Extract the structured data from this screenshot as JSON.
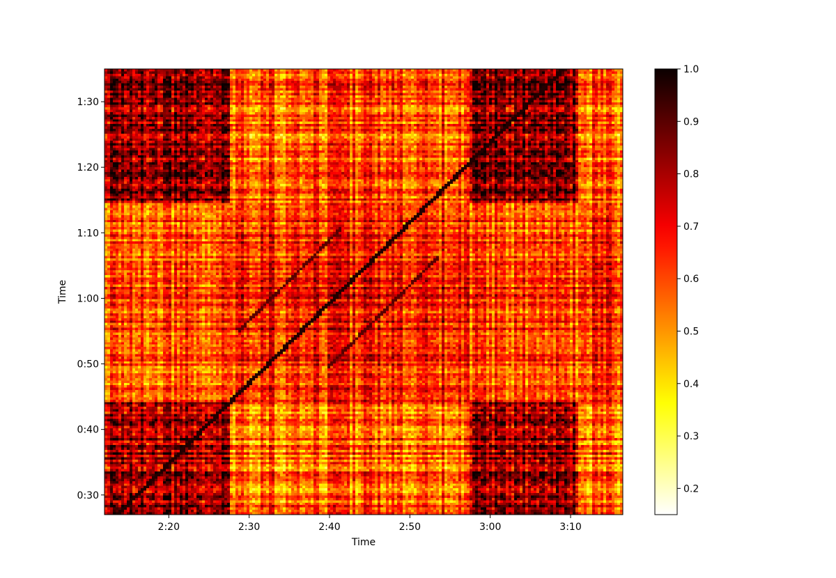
{
  "chart_data": {
    "type": "heatmap",
    "title": "",
    "xlabel": "Time",
    "ylabel": "Time",
    "x_range_seconds": [
      132,
      196.5
    ],
    "y_range_seconds": [
      27,
      95
    ],
    "x_ticks": [
      {
        "value": 140,
        "label": "2:20"
      },
      {
        "value": 150,
        "label": "2:30"
      },
      {
        "value": 160,
        "label": "2:40"
      },
      {
        "value": 170,
        "label": "2:50"
      },
      {
        "value": 180,
        "label": "3:00"
      },
      {
        "value": 190,
        "label": "3:10"
      }
    ],
    "y_ticks": [
      {
        "value": 30,
        "label": "0:30"
      },
      {
        "value": 40,
        "label": "0:40"
      },
      {
        "value": 50,
        "label": "0:50"
      },
      {
        "value": 60,
        "label": "1:00"
      },
      {
        "value": 70,
        "label": "1:10"
      },
      {
        "value": 80,
        "label": "1:20"
      },
      {
        "value": 90,
        "label": "1:30"
      }
    ],
    "colormap": "hot_r",
    "colorbar": {
      "min": 0.15,
      "max": 1.0,
      "ticks": [
        {
          "value": 0.2,
          "label": "0.2"
        },
        {
          "value": 0.3,
          "label": "0.3"
        },
        {
          "value": 0.4,
          "label": "0.4"
        },
        {
          "value": 0.5,
          "label": "0.5"
        },
        {
          "value": 0.6,
          "label": "0.6"
        },
        {
          "value": 0.7,
          "label": "0.7"
        },
        {
          "value": 0.8,
          "label": "0.8"
        },
        {
          "value": 0.9,
          "label": "0.9"
        },
        {
          "value": 1.0,
          "label": "1.0"
        }
      ]
    },
    "x_segments_seconds": [
      [
        132,
        147.5
      ],
      [
        147.5,
        177.5
      ],
      [
        177.5,
        191
      ],
      [
        191,
        196.5
      ]
    ],
    "y_segments_seconds": [
      [
        27,
        44
      ],
      [
        44,
        74.5
      ],
      [
        74.5,
        95
      ]
    ],
    "segment_means": [
      [
        0.82,
        0.58,
        0.82,
        0.56
      ],
      [
        0.6,
        0.66,
        0.6,
        0.64
      ],
      [
        0.81,
        0.57,
        0.81,
        0.56
      ]
    ],
    "diagonal_value": 0.97
  }
}
